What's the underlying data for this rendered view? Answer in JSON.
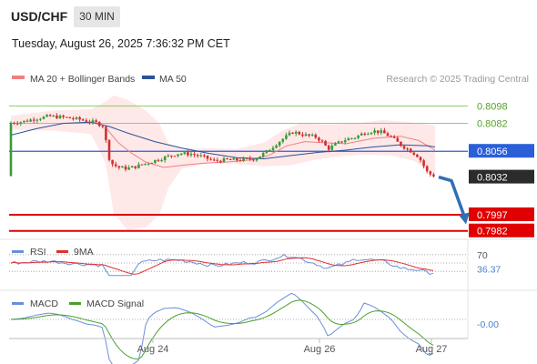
{
  "header": {
    "symbol": "USD/CHF",
    "timeframe": "30 MIN",
    "datetime": "Tuesday, August 26, 2025 7:36:32 PM CET"
  },
  "legend": {
    "ma20": {
      "label": "MA 20 + Bollinger Bands",
      "color": "#f08080"
    },
    "ma50": {
      "label": "MA 50",
      "color": "#2a5298"
    },
    "credit": "Research © 2025 Trading Central"
  },
  "colors": {
    "up": "#3a9a3a",
    "down": "#d03030",
    "level_green": "#8fcf6a",
    "level_blue": "#2a5fd8",
    "level_red": "#e00000",
    "current": "#2b2b2b",
    "arrow": "#2f6fb5",
    "rsi": "#6a8fd8",
    "rsi_ma": "#e03030",
    "macd": "#6a8fd8",
    "macd_signal": "#4aa02a"
  },
  "chart_data": [
    {
      "type": "candlestick",
      "price_range": [
        0.7975,
        0.8112
      ],
      "x_ticks": [
        "Aug 24",
        "Aug 26",
        "Aug 27"
      ],
      "levels": [
        {
          "value": 0.8098,
          "label": "0.8098",
          "style": "resistance"
        },
        {
          "value": 0.8082,
          "label": "0.8082",
          "style": "resistance"
        },
        {
          "value": 0.8056,
          "label": "0.8056",
          "style": "pivot"
        },
        {
          "value": 0.7997,
          "label": "0.7997",
          "style": "support"
        },
        {
          "value": 0.7982,
          "label": "0.7982",
          "style": "support"
        }
      ],
      "current_price": {
        "value": 0.8032,
        "label": "0.8032"
      },
      "forecast_target": 0.7989
    },
    {
      "type": "line",
      "name": "RSI",
      "series": [
        {
          "name": "RSI"
        },
        {
          "name": "9MA"
        }
      ],
      "range": [
        0,
        100
      ],
      "ticks": [
        {
          "value": 70,
          "label": "70"
        }
      ],
      "current": {
        "value": 36.37,
        "label": "36.37"
      }
    },
    {
      "type": "line",
      "name": "MACD",
      "series": [
        {
          "name": "MACD"
        },
        {
          "name": "MACD Signal"
        }
      ],
      "current": {
        "value": -0.0,
        "label": "-0.00"
      }
    }
  ]
}
